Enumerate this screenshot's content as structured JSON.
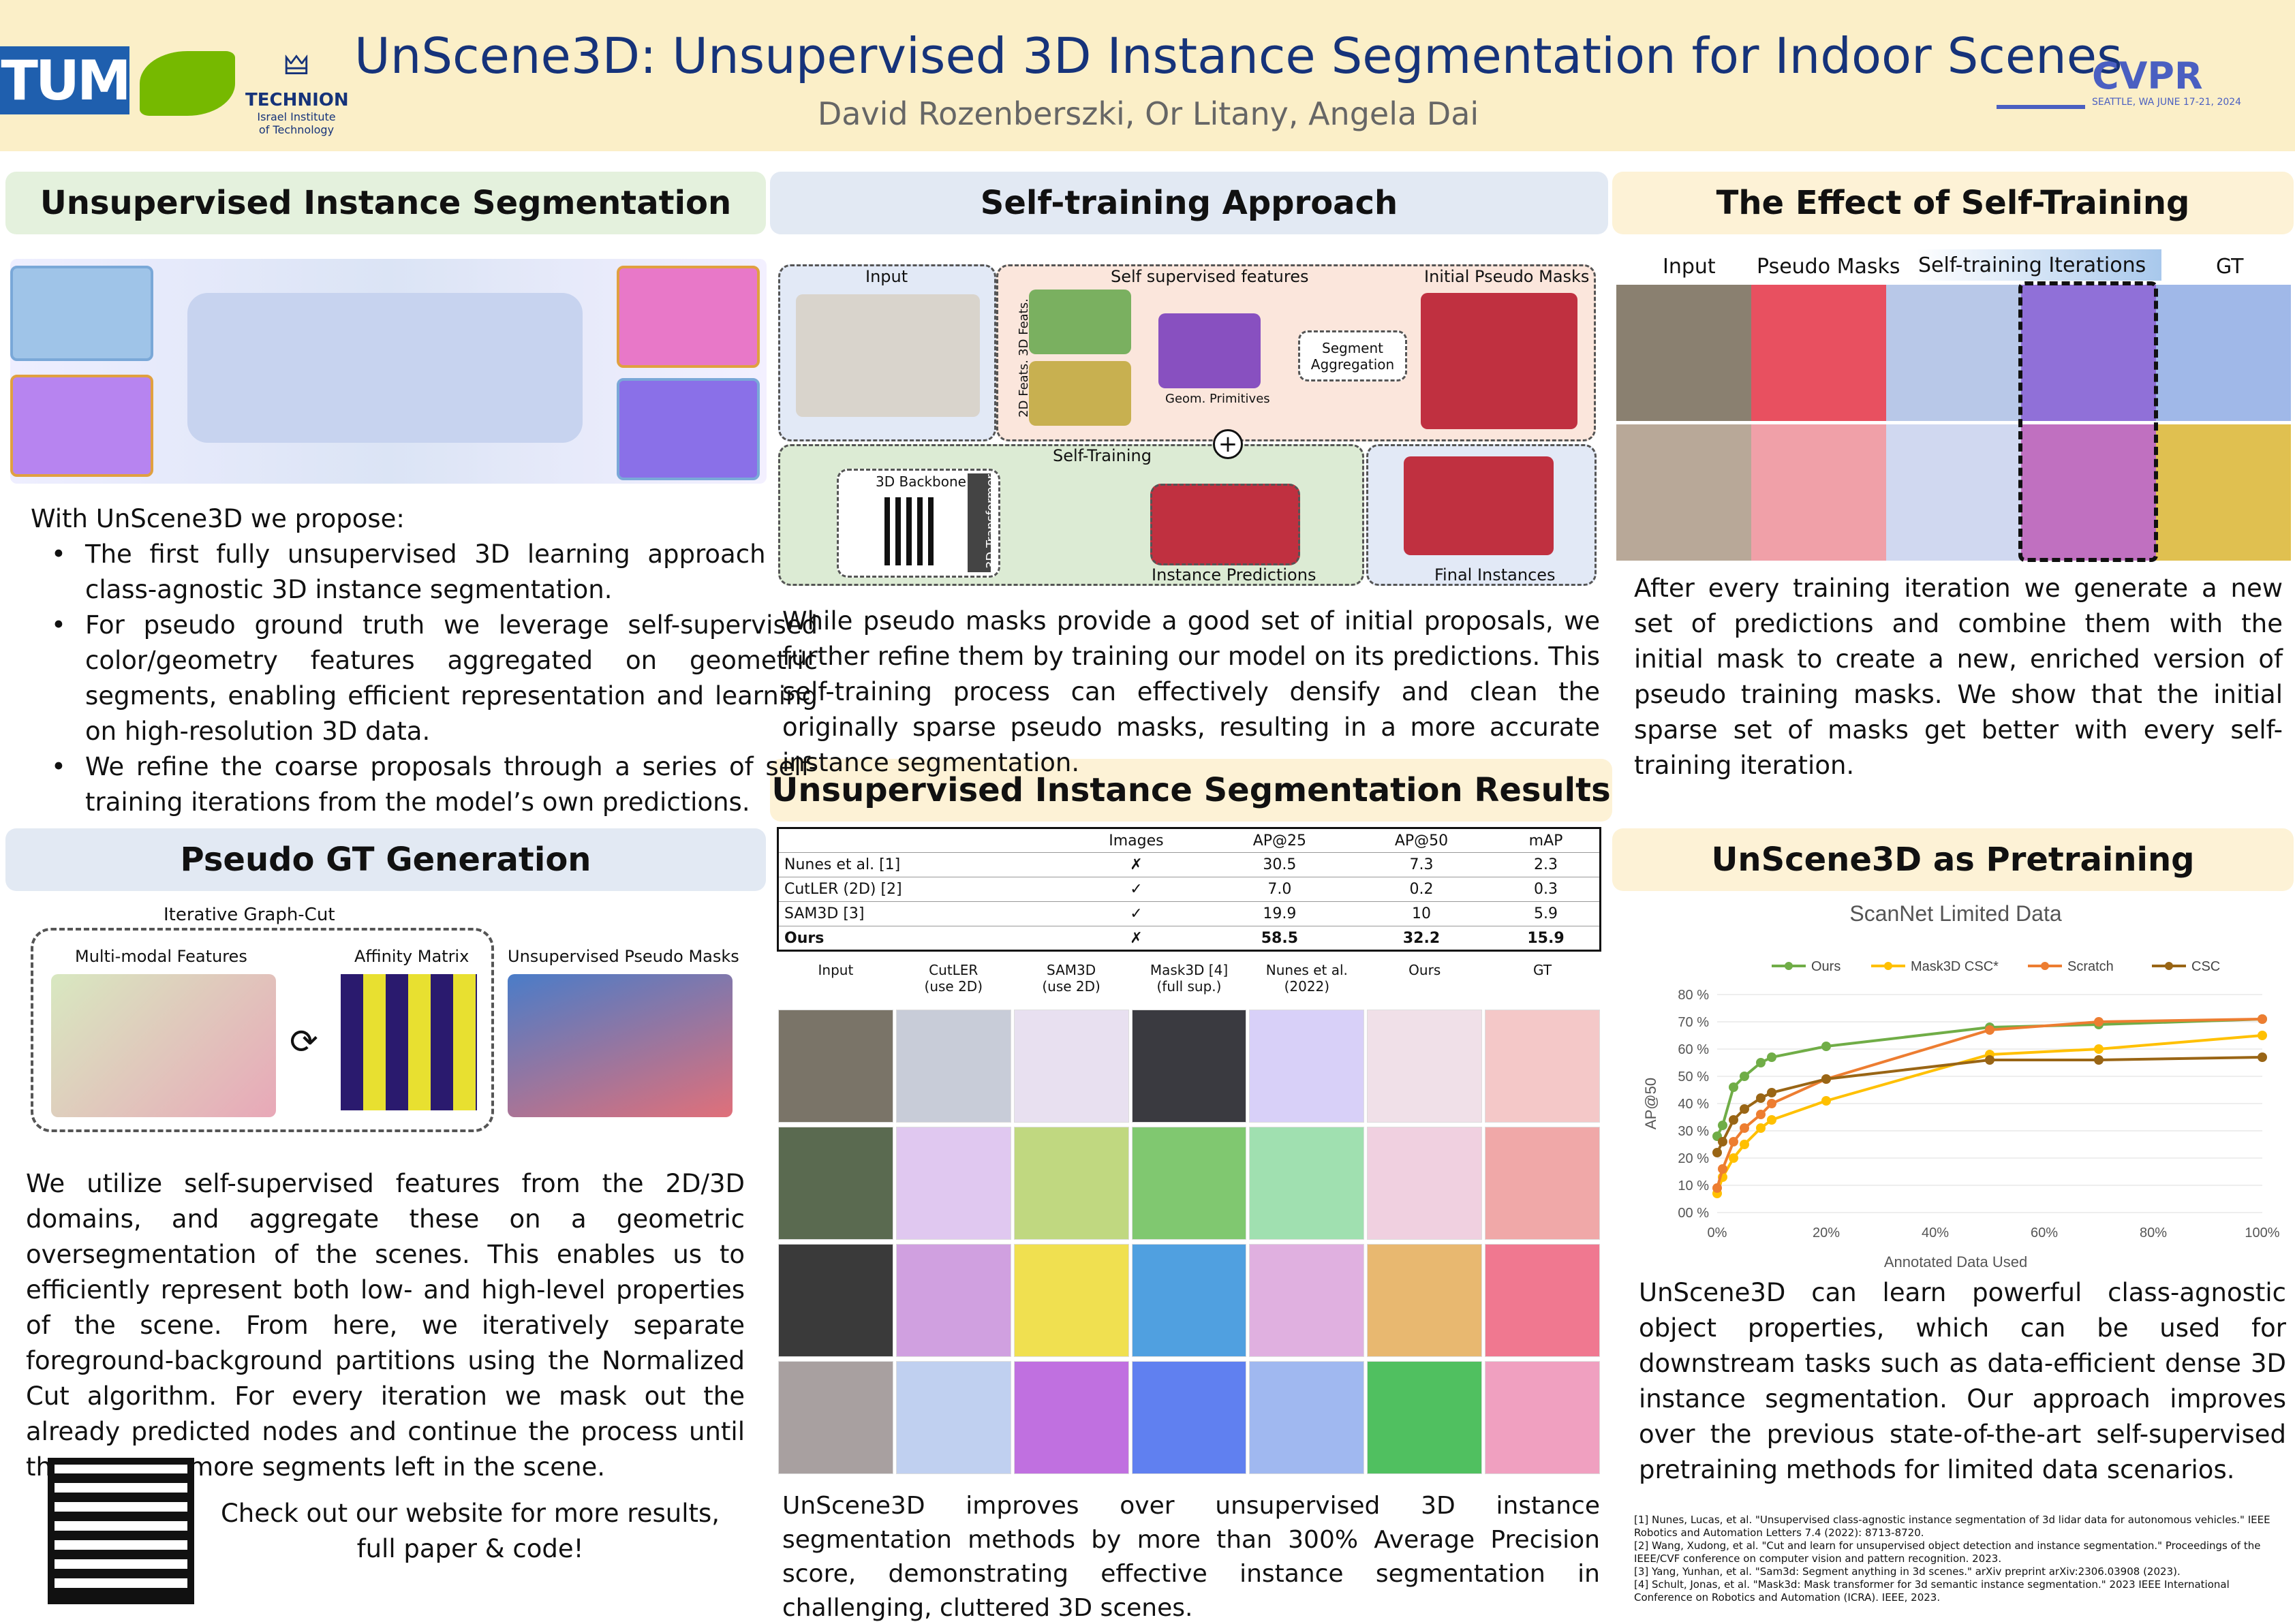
{
  "header": {
    "title": "UnScene3D: Unsupervised 3D Instance Segmentation for Indoor Scenes",
    "authors": "David Rozenberszki, Or Litany, Angela Dai",
    "logo_tum": "TUM",
    "logo_technion": "TECHNION",
    "logo_technion_sub1": "Israel Institute",
    "logo_technion_sub2": "of Technology",
    "logo_cvpr": "CVPR",
    "logo_cvpr_sub": "SEATTLE, WA  JUNE 17-21, 2024"
  },
  "sections": {
    "unsup": "Unsupervised Instance Segmentation",
    "selftrain": "Self-training Approach",
    "effect": "The Effect of Self-Training",
    "pseudo": "Pseudo GT Generation",
    "results": "Unsupervised Instance Segmentation Results",
    "pretrain": "UnScene3D as Pretraining"
  },
  "unsup": {
    "intro": "With UnScene3D we propose:",
    "bullets": [
      "The first fully unsupervised 3D learning approach for class-agnostic 3D instance segmentation.",
      "For pseudo ground truth we leverage self-supervised color/geometry features aggregated on geometric segments, enabling efficient representation and learning on high-resolution 3D data.",
      "We refine the coarse proposals through a series of self-training iterations from the model’s own predictions."
    ]
  },
  "pseudo": {
    "graphcut": "Iterative Graph-Cut",
    "features": "Multi-modal Features",
    "affinity": "Affinity Matrix",
    "masks": "Unsupervised Pseudo Masks",
    "text": "We utilize self-supervised features from the 2D/3D domains, and aggregate these on a geometric oversegmentation of the scenes. This enables us to efficiently represent both low- and high-level properties of the scene. From here, we iteratively separate foreground-background partitions using the Normalized Cut algorithm. For every iteration we mask out the already predicted nodes and continue the process until there are no more segments left in the scene.",
    "website": "Check out our website for more results, full paper & code!"
  },
  "diagram": {
    "input": "Input",
    "ssf": "Self supervised features",
    "ipm": "Initial Pseudo Masks",
    "feat3d": "3D Feats.",
    "feat2d": "2D Feats.",
    "geom": "Geom. Primitives",
    "segagg": "Segment Aggregation",
    "selftraining": "Self-Training",
    "backbone": "3D Backbone",
    "transformer": "3D Transformer",
    "instpred": "Instance Predictions",
    "final": "Final Instances",
    "plus": "+"
  },
  "selftrain": {
    "text": "While pseudo masks provide a good set of initial proposals, we further refine them by training our model on its predictions. This self-training process can effectively densify and clean the originally sparse pseudo masks, resulting in a more accurate instance segmentation."
  },
  "effect": {
    "cols": [
      "Input",
      "Pseudo Masks",
      "Self-training Iterations",
      "GT"
    ],
    "text": "After every training iteration we generate a new set of predictions and combine them with the initial mask to create a new, enriched version of pseudo training masks. We show that the initial sparse set of masks get better with every self-training iteration."
  },
  "results": {
    "headers": [
      "",
      "Images",
      "AP@25",
      "AP@50",
      "mAP"
    ],
    "rows": [
      [
        "Nunes et al. [1]",
        "✗",
        "30.5",
        "7.3",
        "2.3"
      ],
      [
        "CutLER (2D) [2]",
        "✓",
        "7.0",
        "0.2",
        "0.3"
      ],
      [
        "SAM3D [3]",
        "✓",
        "19.9",
        "10",
        "5.9"
      ],
      [
        "Ours",
        "✗",
        "58.5",
        "32.2",
        "15.9"
      ]
    ],
    "grid_cols": [
      "Input",
      "CutLER\n(use 2D)",
      "SAM3D\n(use 2D)",
      "Mask3D [4]\n(full sup.)",
      "Nunes et al.\n(2022)",
      "Ours",
      "GT"
    ],
    "text": "UnScene3D improves over unsupervised 3D instance segmentation methods by more than 300% Average Precision score, demonstrating effective instance segmentation in challenging, cluttered 3D scenes."
  },
  "pretrain": {
    "text": "UnScene3D can learn powerful class-agnostic object properties, which can be used for downstream tasks such as data-efficient dense 3D instance segmentation. Our approach improves over the previous state-of-the-art self-supervised pretraining methods for limited data scenarios."
  },
  "refs": [
    "[1] Nunes, Lucas, et al. \"Unsupervised class-agnostic instance segmentation of 3d lidar data for autonomous vehicles.\" IEEE Robotics and Automation Letters 7.4 (2022): 8713-8720.",
    "[2] Wang, Xudong, et al. \"Cut and learn for unsupervised object detection and instance segmentation.\" Proceedings of the IEEE/CVF conference on computer vision and pattern recognition. 2023.",
    "[3] Yang, Yunhan, et al. \"Sam3d: Segment anything in 3d scenes.\" arXiv preprint arXiv:2306.03908 (2023).",
    "[4] Schult, Jonas, et al. \"Mask3d: Mask transformer for 3d semantic instance segmentation.\" 2023 IEEE International Conference on Robotics and Automation (ICRA). IEEE, 2023."
  ],
  "colors": {
    "ours": "#70ad47",
    "mask3d": "#ffc000",
    "scratch": "#ed7d31",
    "csc": "#996515",
    "title_blue": "#16337a"
  },
  "chart_data": {
    "type": "line",
    "title": "ScanNet Limited Data",
    "xlabel": "Annotated Data Used",
    "ylabel": "AP@50",
    "x": [
      0,
      1,
      3,
      5,
      8,
      10,
      20,
      50,
      70,
      100
    ],
    "xticks": [
      "0%",
      "20%",
      "40%",
      "60%",
      "80%",
      "100%"
    ],
    "yticks": [
      "00 %",
      "10 %",
      "20 %",
      "30 %",
      "40 %",
      "50 %",
      "60 %",
      "70 %",
      "80 %"
    ],
    "xlim": [
      0,
      100
    ],
    "ylim": [
      0,
      80
    ],
    "legend": "top",
    "series": [
      {
        "name": "Ours",
        "color": "#70ad47",
        "values": [
          28,
          32,
          46,
          50,
          55,
          57,
          61,
          68,
          69,
          71
        ]
      },
      {
        "name": "Mask3D CSC*",
        "color": "#ffc000",
        "values": [
          7,
          13,
          20,
          25,
          31,
          34,
          41,
          58,
          60,
          65
        ]
      },
      {
        "name": "Scratch",
        "color": "#ed7d31",
        "values": [
          9,
          16,
          26,
          31,
          36,
          40,
          49,
          67,
          70,
          71
        ]
      },
      {
        "name": "CSC",
        "color": "#996515",
        "values": [
          22,
          26,
          34,
          38,
          42,
          44,
          49,
          56,
          56,
          57
        ]
      }
    ]
  }
}
